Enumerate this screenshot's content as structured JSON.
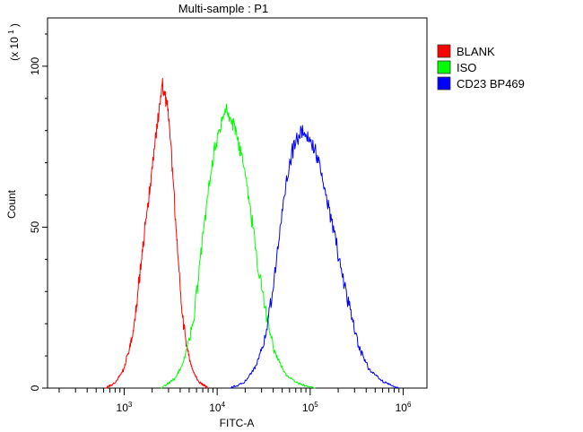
{
  "chart_data": {
    "type": "line",
    "title": "Multi-sample : P1",
    "xlabel": "FITC-A",
    "ylabel": "Count",
    "y_scale_label_prefix": "(x 10",
    "y_scale_label_exp": "1",
    "y_scale_label_suffix": ")",
    "x_scale": "log",
    "xlim": [
      150,
      1800000
    ],
    "ylim": [
      0,
      115
    ],
    "y_ticks": [
      0,
      50,
      100
    ],
    "y_tick_labels": [
      "0",
      "50",
      "100"
    ],
    "x_tick_labels": [
      {
        "base": "10",
        "exp": "3"
      },
      {
        "base": "10",
        "exp": "4"
      },
      {
        "base": "10",
        "exp": "5"
      },
      {
        "base": "10",
        "exp": "6"
      }
    ],
    "legend": {
      "placement": "top-right",
      "items": [
        {
          "label": "BLANK",
          "color": "#ff0000"
        },
        {
          "label": "ISO",
          "color": "#00ff00"
        },
        {
          "label": "CD23 BP469",
          "color": "#0000ff"
        }
      ]
    },
    "series": [
      {
        "name": "BLANK",
        "color": "#ff0000",
        "mean_log10": 3.4,
        "sd_log10": 0.16,
        "peak": 94,
        "points": [
          [
            2.8,
            0
          ],
          [
            2.9,
            1.5
          ],
          [
            3.0,
            6
          ],
          [
            3.1,
            18
          ],
          [
            3.18,
            38
          ],
          [
            3.24,
            53
          ],
          [
            3.3,
            68
          ],
          [
            3.34,
            79
          ],
          [
            3.38,
            87
          ],
          [
            3.41,
            94
          ],
          [
            3.44,
            91
          ],
          [
            3.47,
            86
          ],
          [
            3.51,
            72
          ],
          [
            3.56,
            49
          ],
          [
            3.61,
            27
          ],
          [
            3.67,
            13
          ],
          [
            3.73,
            6
          ],
          [
            3.8,
            2
          ],
          [
            3.9,
            0
          ]
        ]
      },
      {
        "name": "ISO",
        "color": "#00ff00",
        "mean_log10": 4.1,
        "sd_log10": 0.2,
        "peak": 87,
        "points": [
          [
            3.4,
            0
          ],
          [
            3.55,
            3
          ],
          [
            3.65,
            9
          ],
          [
            3.75,
            22
          ],
          [
            3.83,
            43
          ],
          [
            3.9,
            60
          ],
          [
            3.97,
            74
          ],
          [
            4.04,
            82
          ],
          [
            4.1,
            87
          ],
          [
            4.15,
            84
          ],
          [
            4.21,
            79
          ],
          [
            4.28,
            70
          ],
          [
            4.36,
            55
          ],
          [
            4.44,
            38
          ],
          [
            4.52,
            24
          ],
          [
            4.62,
            11
          ],
          [
            4.74,
            4
          ],
          [
            4.9,
            1
          ],
          [
            5.05,
            0
          ]
        ]
      },
      {
        "name": "CD23 BP469",
        "color": "#0000ff",
        "mean_log10": 4.85,
        "sd_log10": 0.22,
        "peak": 80,
        "points": [
          [
            4.15,
            0
          ],
          [
            4.3,
            2
          ],
          [
            4.42,
            7
          ],
          [
            4.52,
            16
          ],
          [
            4.6,
            31
          ],
          [
            4.68,
            50
          ],
          [
            4.75,
            65
          ],
          [
            4.82,
            75
          ],
          [
            4.9,
            80
          ],
          [
            4.95,
            79
          ],
          [
            5.01,
            76
          ],
          [
            5.08,
            72
          ],
          [
            5.15,
            63
          ],
          [
            5.23,
            52
          ],
          [
            5.32,
            39
          ],
          [
            5.42,
            25
          ],
          [
            5.52,
            13
          ],
          [
            5.63,
            6
          ],
          [
            5.78,
            2
          ],
          [
            5.95,
            0
          ]
        ]
      }
    ]
  }
}
